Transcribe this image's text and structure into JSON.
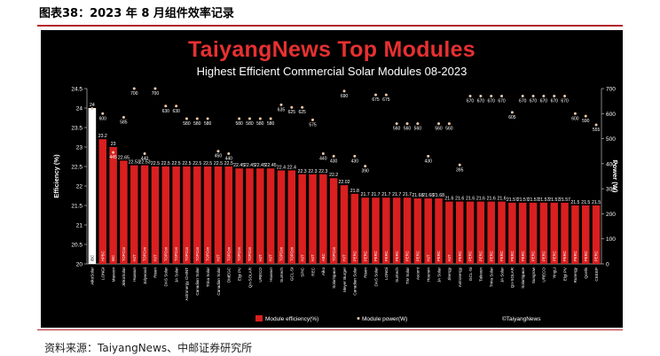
{
  "report_title": "图表38：2023 年 8 月组件效率记录",
  "source_note": "资料来源：TaiyangNews、中邮证券研究所",
  "chart_data": {
    "type": "bar",
    "title": "TaiyangNews Top Modules",
    "subtitle": "Highest Efficient Commercial Solar Modules 08-2023",
    "ylabel_left": "Efficiency (%)",
    "ylabel_right": "Power (W)",
    "ylim_left": [
      20,
      24.5
    ],
    "ylim_right": [
      0,
      700
    ],
    "yticks_left": [
      "20",
      "20.5",
      "21",
      "21.5",
      "22",
      "22.5",
      "23",
      "23.5",
      "24",
      "24.5"
    ],
    "yticks_right": [
      "0",
      "100",
      "200",
      "300",
      "400",
      "500",
      "600",
      "700"
    ],
    "legend_position": "bottom",
    "legend": {
      "efficiency": "Module efficiency(%)",
      "power": "Module power(W)"
    },
    "watermark": "©TaiyangNews",
    "colors": {
      "bar": "#d91f1f",
      "bar_first": "#ffffff",
      "marker": "#f0c8a8",
      "title": "#e83030"
    },
    "categories": [
      "AikoSolar",
      "LONGi",
      "Maxeon",
      "JinkoSolar",
      "Huasun",
      "Jolywood",
      "Risen",
      "DAS Solar",
      "JA Solar",
      "Astronergy CHINT",
      "Canadian Solar",
      "Trina Solar",
      "Canadian Solar",
      "DMEGC",
      "Elgi PV",
      "Qn-SOLAR",
      "URECO",
      "Huasun",
      "Suntech",
      "GCL-Si",
      "SPIC",
      "REC",
      "Aiko",
      "SolarSpace",
      "Meyer Burger",
      "Canadian Solar",
      "Risen",
      "DAS Solar",
      "LONGi",
      "Suntech",
      "TW Solar",
      "Ascent",
      "Hounen",
      "JA Solar",
      "Jinergy",
      "Astronergy",
      "GCL-Si",
      "Talesun",
      "Trina Solar",
      "JA Solar",
      "Qn-SOLAR",
      "SolarSpace",
      "Sungrow",
      "URECO",
      "YingLi",
      "Elgi PV",
      "Runergy",
      "Qcells",
      "CEEEP"
    ],
    "technologies": [
      "IBC",
      "HPBC",
      "IBC",
      "TOPCon",
      "HJT",
      "TOPCon",
      "HJT",
      "TOPCon",
      "TOPCon",
      "TOPCon",
      "TOPCon",
      "TOPCon",
      "HJT",
      "TOPCon",
      "TOPCon",
      "TOPCon",
      "HJT",
      "HJT",
      "TOPCon",
      "TOPCon",
      "HJT",
      "HJT",
      "ABC",
      "TOPCon",
      "HJT",
      "PERC",
      "PERC",
      "PERC",
      "PERC",
      "PERC",
      "PERC",
      "PERC",
      "HJT",
      "PERC",
      "HJT",
      "PERC",
      "PERC",
      "PERC",
      "PERC",
      "PERC",
      "PERC",
      "PERC",
      "PERC",
      "PERC",
      "PERC",
      "PERC",
      "PERC",
      "PERC",
      "PERC"
    ],
    "efficiency": [
      24,
      23.2,
      23,
      22.65,
      22.53,
      22.53,
      22.5,
      22.5,
      22.5,
      22.5,
      22.5,
      22.5,
      22.5,
      22.5,
      22.45,
      22.45,
      22.45,
      22.45,
      22.4,
      22.4,
      22.3,
      22.3,
      22.3,
      22.2,
      22.02,
      21.8,
      21.7,
      21.7,
      21.7,
      21.7,
      21.7,
      21.68,
      21.68,
      21.68,
      21.6,
      21.6,
      21.6,
      21.6,
      21.6,
      21.6,
      21.57,
      21.57,
      21.57,
      21.57,
      21.57,
      21.57,
      21.5,
      21.5,
      21.5
    ],
    "efficiency_labels": [
      "24",
      "23.2",
      "23",
      "22.65",
      "22.53",
      "22.53",
      "22.5",
      "22.5",
      "22.5",
      "22.5",
      "22.5",
      "22.5",
      "22.5",
      "22.5",
      "22.45",
      "22.45",
      "22.45",
      "22.45",
      "22.4",
      "22.4",
      "22.3",
      "22.3",
      "22.3",
      "22.2",
      "22.02",
      "21.8",
      "21.7",
      "21.7",
      "21.7",
      "21.7",
      "21.7",
      "21.68",
      "21.68",
      "21.68",
      "21.6",
      "21.6",
      "21.6",
      "21.6",
      "21.6",
      "21.6",
      "21.57",
      "21.57",
      "21.57",
      "21.57",
      "21.57",
      "21.57",
      "21.5",
      "21.5",
      "21.5"
    ],
    "power": [
      620,
      600,
      445,
      585,
      700,
      440,
      700,
      630,
      630,
      580,
      580,
      580,
      450,
      440,
      580,
      580,
      580,
      580,
      635,
      625,
      625,
      575,
      440,
      430,
      690,
      430,
      390,
      675,
      675,
      560,
      560,
      560,
      430,
      560,
      560,
      395,
      670,
      670,
      670,
      670,
      605,
      670,
      670,
      670,
      670,
      670,
      600,
      590,
      555
    ]
  }
}
